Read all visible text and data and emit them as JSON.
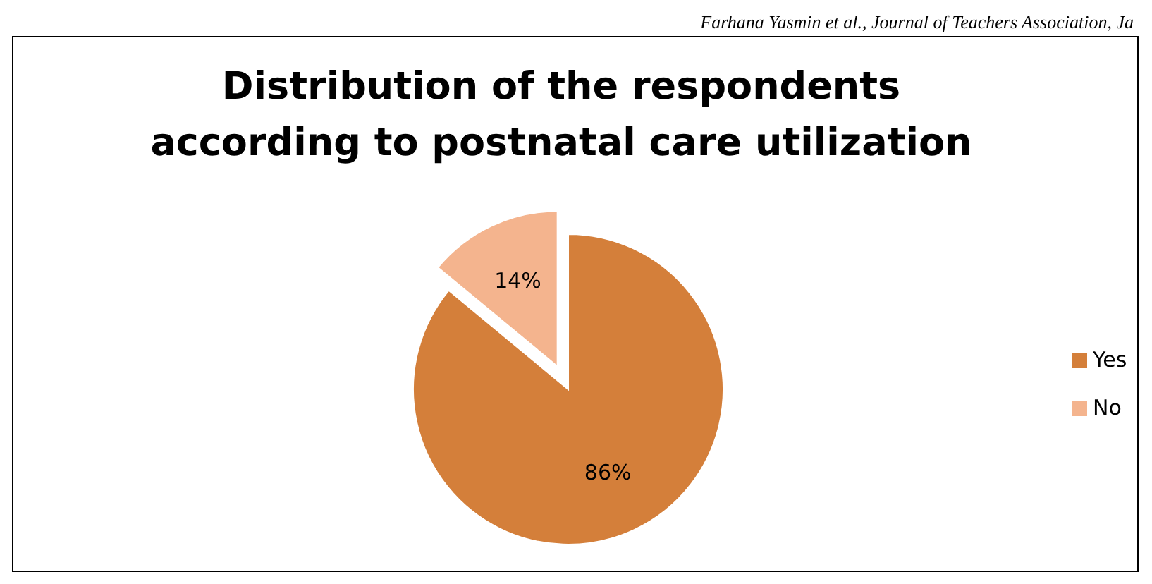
{
  "chart_data": {
    "type": "pie",
    "title": "Distribution of the respondents according to postnatal care utilization",
    "categories": [
      "Yes",
      "No"
    ],
    "values": [
      86,
      14
    ],
    "colors": [
      "#d47f3a",
      "#f4b48e"
    ],
    "value_labels": [
      "86%",
      "14%"
    ],
    "legend": "right",
    "annotations": [
      "Farhana Yasmin et al., Journal of Teachers Association, Ja"
    ]
  }
}
